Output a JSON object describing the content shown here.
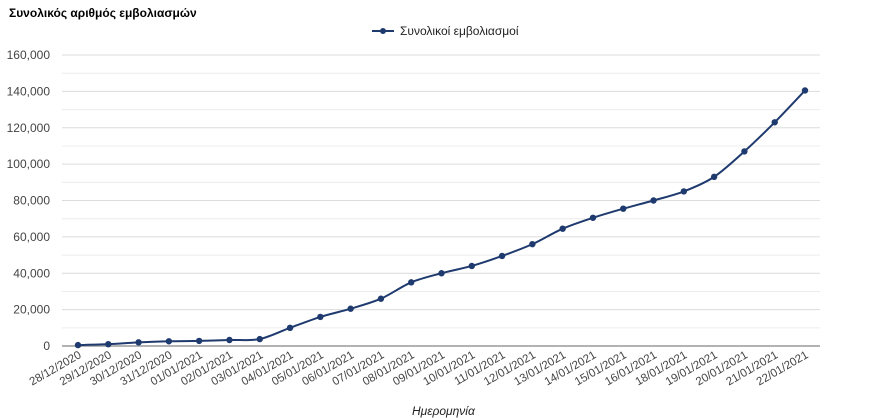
{
  "chart_data": {
    "type": "line",
    "title": "Συνολικός αριθμός εμβολιασμών",
    "xlabel": "Ημερομηνία",
    "ylabel": "",
    "ylim": [
      0,
      160000
    ],
    "yticks": [
      "0",
      "20,000",
      "40,000",
      "60,000",
      "80,000",
      "100,000",
      "120,000",
      "140,000",
      "160,000"
    ],
    "grid": true,
    "legend_position": "top",
    "categories": [
      "28/12/2020",
      "29/12/2020",
      "30/12/2020",
      "31/12/2020",
      "01/01/2021",
      "02/01/2021",
      "03/01/2021",
      "04/01/2021",
      "05/01/2021",
      "06/01/2021",
      "07/01/2021",
      "08/01/2021",
      "09/01/2021",
      "10/01/2021",
      "11/01/2021",
      "12/01/2021",
      "13/01/2021",
      "14/01/2021",
      "15/01/2021",
      "16/01/2021",
      "18/01/2021",
      "19/01/2021",
      "20/01/2021",
      "21/01/2021",
      "22/01/2021"
    ],
    "series": [
      {
        "name": "Συνολικοί εμβολιασμοί",
        "color": "#1f3a6e",
        "values": [
          500,
          1000,
          2000,
          2600,
          2800,
          3300,
          3800,
          10000,
          16000,
          20500,
          26000,
          35000,
          40000,
          44000,
          49500,
          56000,
          64500,
          70500,
          75500,
          80000,
          85000,
          93000,
          107000,
          123000,
          140500
        ]
      }
    ]
  },
  "legend": {
    "label": "Συνολικοί εμβολιασμοί"
  }
}
